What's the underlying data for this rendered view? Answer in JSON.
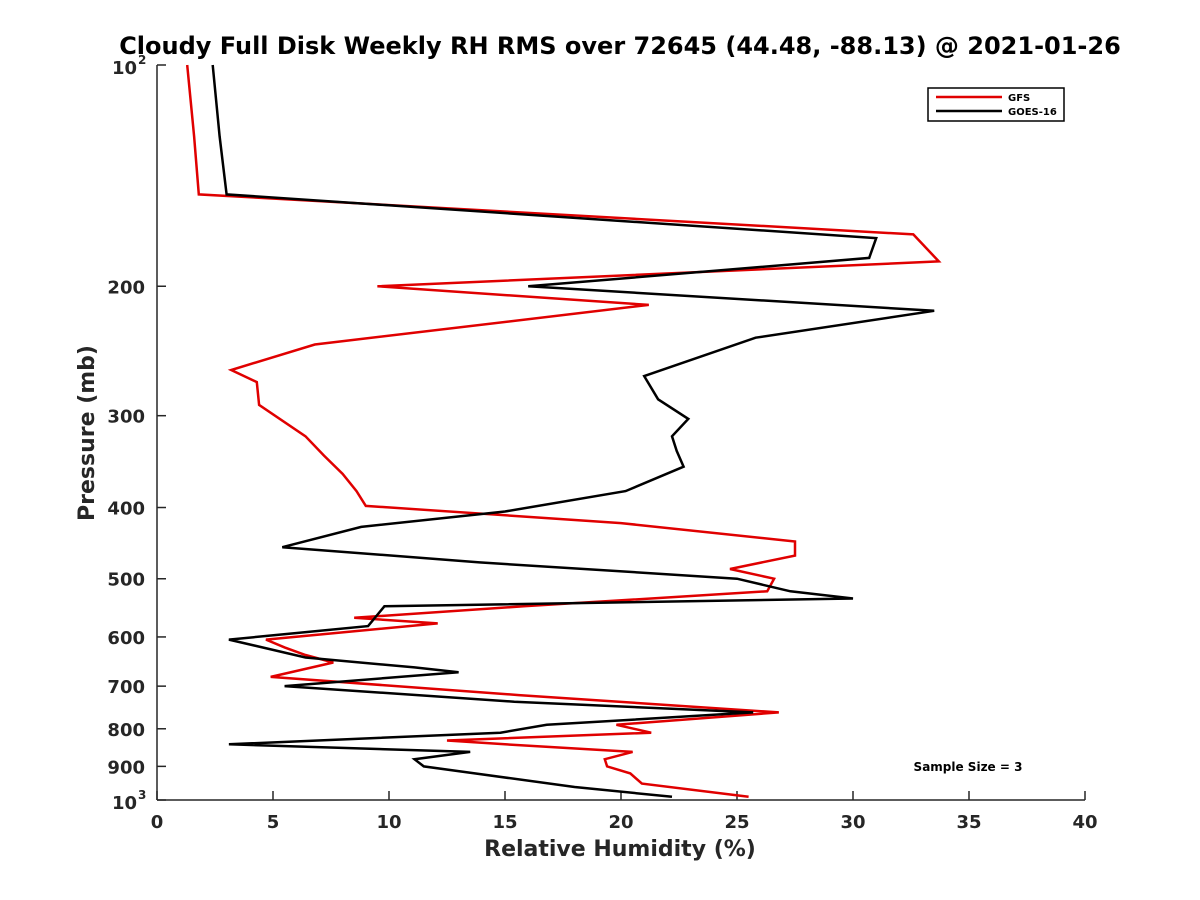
{
  "chart_data": {
    "type": "line",
    "title": "Cloudy Full Disk Weekly RH RMS over 72645 (44.48, -88.13) @ 2021-01-26",
    "xlabel": "Relative Humidity (%)",
    "ylabel": "Pressure (mb)",
    "xlim": [
      0,
      40
    ],
    "ylim": [
      100,
      1000
    ],
    "y_scale": "log",
    "y_reversed": true,
    "x_ticks": [
      "0",
      "5",
      "10",
      "15",
      "20",
      "25",
      "30",
      "35",
      "40"
    ],
    "y_ticks": [
      {
        "value": 100,
        "label": "10",
        "exp": "2"
      },
      {
        "value": 200,
        "label": "200"
      },
      {
        "value": 300,
        "label": "300"
      },
      {
        "value": 400,
        "label": "400"
      },
      {
        "value": 500,
        "label": "500"
      },
      {
        "value": 600,
        "label": "600"
      },
      {
        "value": 700,
        "label": "700"
      },
      {
        "value": 800,
        "label": "800"
      },
      {
        "value": 900,
        "label": "900"
      },
      {
        "value": 1000,
        "label": "10",
        "exp": "3"
      }
    ],
    "grid": false,
    "legend_position": "top-right",
    "annotation": "Sample Size = 3",
    "series": [
      {
        "name": "GFS",
        "color": "#e00000",
        "points": [
          [
            1.3,
            100
          ],
          [
            1.6,
            125
          ],
          [
            1.8,
            150
          ],
          [
            32.6,
            170
          ],
          [
            33.7,
            185
          ],
          [
            9.5,
            200
          ],
          [
            21.2,
            212
          ],
          [
            6.8,
            240
          ],
          [
            3.2,
            260
          ],
          [
            4.3,
            270
          ],
          [
            4.4,
            290
          ],
          [
            6.4,
            320
          ],
          [
            7.2,
            340
          ],
          [
            8.0,
            360
          ],
          [
            8.6,
            380
          ],
          [
            9.0,
            398
          ],
          [
            20.0,
            420
          ],
          [
            27.5,
            445
          ],
          [
            27.5,
            465
          ],
          [
            24.7,
            485
          ],
          [
            26.6,
            500
          ],
          [
            26.3,
            520
          ],
          [
            15.8,
            545
          ],
          [
            8.5,
            565
          ],
          [
            12.1,
            575
          ],
          [
            4.7,
            605
          ],
          [
            5.5,
            620
          ],
          [
            6.4,
            635
          ],
          [
            7.6,
            650
          ],
          [
            4.9,
            680
          ],
          [
            15.6,
            720
          ],
          [
            26.8,
            760
          ],
          [
            19.8,
            790
          ],
          [
            21.3,
            810
          ],
          [
            12.5,
            830
          ],
          [
            15.0,
            840
          ],
          [
            20.5,
            860
          ],
          [
            19.3,
            880
          ],
          [
            19.4,
            900
          ],
          [
            20.4,
            920
          ],
          [
            20.9,
            950
          ],
          [
            25.5,
            990
          ]
        ]
      },
      {
        "name": "GOES-16",
        "color": "#000000",
        "points": [
          [
            2.4,
            100
          ],
          [
            2.7,
            125
          ],
          [
            3.0,
            150
          ],
          [
            31.0,
            172
          ],
          [
            30.7,
            183
          ],
          [
            16.0,
            200
          ],
          [
            33.5,
            216
          ],
          [
            25.8,
            235
          ],
          [
            21.0,
            265
          ],
          [
            21.6,
            285
          ],
          [
            22.9,
            303
          ],
          [
            22.2,
            320
          ],
          [
            22.4,
            335
          ],
          [
            22.7,
            352
          ],
          [
            20.2,
            380
          ],
          [
            15.0,
            405
          ],
          [
            8.8,
            425
          ],
          [
            5.4,
            453
          ],
          [
            13.9,
            475
          ],
          [
            25.0,
            500
          ],
          [
            27.3,
            520
          ],
          [
            30.0,
            532
          ],
          [
            9.8,
            545
          ],
          [
            9.1,
            580
          ],
          [
            3.1,
            605
          ],
          [
            6.4,
            640
          ],
          [
            11.1,
            660
          ],
          [
            13.0,
            670
          ],
          [
            5.5,
            700
          ],
          [
            15.4,
            735
          ],
          [
            25.7,
            760
          ],
          [
            16.8,
            790
          ],
          [
            14.8,
            810
          ],
          [
            3.1,
            840
          ],
          [
            13.5,
            860
          ],
          [
            11.1,
            880
          ],
          [
            11.5,
            900
          ],
          [
            13.7,
            920
          ],
          [
            18.0,
            960
          ],
          [
            22.2,
            990
          ]
        ]
      }
    ]
  }
}
